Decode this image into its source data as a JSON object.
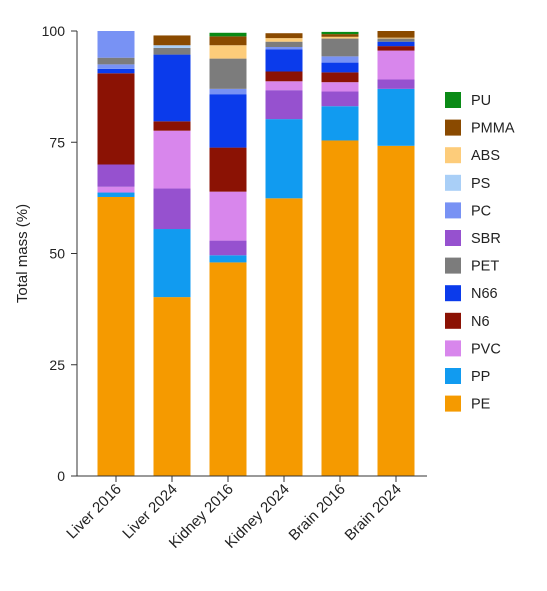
{
  "chart_data": {
    "type": "bar",
    "stacked": true,
    "categories": [
      "Liver 2016",
      "Liver 2024",
      "Kidney 2016",
      "Kidney 2024",
      "Brain 2016",
      "Brain 2024"
    ],
    "ylabel": "Total mass (%)",
    "xlabel": "",
    "ylim": [
      0,
      100
    ],
    "yticks": [
      0,
      25,
      50,
      75,
      100
    ],
    "grid": false,
    "legend_position": "right",
    "series": [
      {
        "name": "PE",
        "color": "#F59A00",
        "values": [
          62.7,
          40.2,
          48.0,
          62.4,
          75.4,
          74.2
        ]
      },
      {
        "name": "PP",
        "color": "#119BF0",
        "values": [
          1.0,
          15.3,
          1.6,
          17.8,
          7.7,
          12.8
        ]
      },
      {
        "name": "PVC",
        "color": "#D886EC",
        "values": [
          1.3,
          0.0,
          0.0,
          0.0,
          0.0,
          0.0
        ]
      },
      {
        "name": "SBR",
        "color": "#9651CF",
        "values": [
          5.0,
          9.1,
          3.3,
          6.5,
          3.3,
          2.1
        ]
      },
      {
        "name": "PVC",
        "color": "#D886EC",
        "values": [
          0.0,
          13.0,
          11.0,
          2.0,
          2.1,
          6.5
        ]
      },
      {
        "name": "N6",
        "color": "#8B1204",
        "values": [
          20.5,
          2.1,
          9.9,
          2.2,
          2.2,
          1.0
        ]
      },
      {
        "name": "N66",
        "color": "#0B3BEB",
        "values": [
          1.0,
          15.0,
          12.0,
          5.0,
          2.2,
          1.0
        ]
      },
      {
        "name": "PC",
        "color": "#7892F4",
        "values": [
          1.0,
          0.0,
          1.2,
          0.5,
          1.4,
          0.0
        ]
      },
      {
        "name": "PET",
        "color": "#7C7C7C",
        "values": [
          1.5,
          1.5,
          6.8,
          1.2,
          4.0,
          0.7
        ]
      },
      {
        "name": "PS",
        "color": "#A9CFF7",
        "values": [
          0.0,
          0.6,
          0.0,
          0.0,
          0.0,
          0.0
        ]
      },
      {
        "name": "PC",
        "color": "#7892F4",
        "values": [
          6.0,
          0.0,
          0.0,
          0.0,
          0.0,
          0.0
        ]
      },
      {
        "name": "ABS",
        "color": "#FDCC7A",
        "values": [
          0.0,
          0.0,
          3.0,
          0.8,
          0.4,
          0.2
        ]
      },
      {
        "name": "PMMA",
        "color": "#8A4A00",
        "values": [
          0.0,
          2.2,
          2.0,
          1.1,
          0.6,
          1.5
        ]
      },
      {
        "name": "PU",
        "color": "#0A8A16",
        "values": [
          0.0,
          0.0,
          0.8,
          0.0,
          0.5,
          0.0
        ]
      }
    ],
    "legend": [
      {
        "name": "PU",
        "color": "#0A8A16"
      },
      {
        "name": "PMMA",
        "color": "#8A4A00"
      },
      {
        "name": "ABS",
        "color": "#FDCC7A"
      },
      {
        "name": "PS",
        "color": "#A9CFF7"
      },
      {
        "name": "PC",
        "color": "#7892F4"
      },
      {
        "name": "SBR",
        "color": "#9651CF"
      },
      {
        "name": "PET",
        "color": "#7C7C7C"
      },
      {
        "name": "N66",
        "color": "#0B3BEB"
      },
      {
        "name": "N6",
        "color": "#8B1204"
      },
      {
        "name": "PVC",
        "color": "#D886EC"
      },
      {
        "name": "PP",
        "color": "#119BF0"
      },
      {
        "name": "PE",
        "color": "#F59A00"
      }
    ]
  }
}
